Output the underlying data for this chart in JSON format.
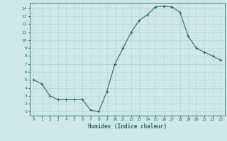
{
  "x": [
    0,
    1,
    2,
    3,
    4,
    5,
    6,
    7,
    8,
    9,
    10,
    11,
    12,
    13,
    14,
    15,
    16,
    17,
    18,
    19,
    20,
    21,
    22,
    23
  ],
  "y": [
    5.0,
    4.5,
    3.0,
    2.5,
    2.5,
    2.5,
    2.5,
    1.2,
    1.0,
    3.5,
    7.0,
    9.0,
    11.0,
    12.5,
    13.2,
    14.2,
    14.3,
    14.2,
    13.5,
    10.5,
    9.0,
    8.5,
    8.0,
    7.5
  ],
  "xlabel": "Humidex (Indice chaleur)",
  "xlim": [
    -0.5,
    23.5
  ],
  "ylim": [
    0.5,
    14.7
  ],
  "yticks": [
    1,
    2,
    3,
    4,
    5,
    6,
    7,
    8,
    9,
    10,
    11,
    12,
    13,
    14
  ],
  "xticks": [
    0,
    1,
    2,
    3,
    4,
    5,
    6,
    7,
    8,
    9,
    10,
    11,
    12,
    13,
    14,
    15,
    16,
    17,
    18,
    19,
    20,
    21,
    22,
    23
  ],
  "line_color": "#2e6b5e",
  "marker": "+",
  "bg_color": "#cde8e5",
  "grid_color": "#b8d8d4",
  "tick_label_color": "#2e6b5e",
  "xlabel_color": "#2e6b5e",
  "font_family": "monospace"
}
